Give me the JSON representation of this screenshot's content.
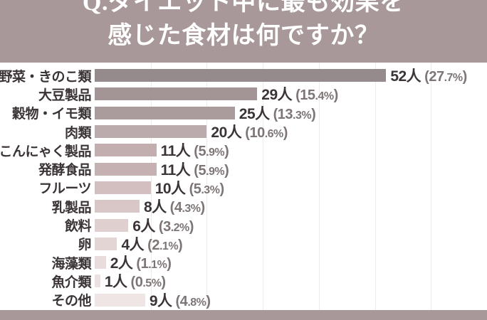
{
  "header": {
    "title_line1": "Q.ダイエット中に最も効果を",
    "title_line2": "感じた食材は何ですか？"
  },
  "chart_data": {
    "type": "bar",
    "orientation": "horizontal",
    "title": "Q.ダイエット中に最も効果を感じた食材は何ですか？",
    "unit_suffix": "人",
    "axis_max": 70,
    "grid_step": 10,
    "grid_on": true,
    "categories": [
      "野菜・きのこ類",
      "大豆製品",
      "穀物・イモ類",
      "肉類",
      "こんにゃく製品",
      "発酵食品",
      "フルーツ",
      "乳製品",
      "飲料",
      "卵",
      "海藻類",
      "魚介類",
      "その他"
    ],
    "values": [
      52,
      29,
      25,
      20,
      11,
      11,
      10,
      8,
      6,
      4,
      2,
      1,
      9
    ],
    "percents": [
      "27.7",
      "15.4",
      "13.3",
      "10.6",
      "5.9",
      "5.9",
      "5.3",
      "4.3",
      "3.2",
      "2.1",
      "1.1",
      "0.5",
      "4.8"
    ],
    "value_labels": [
      "52人 (27.7%)",
      "29人 (15.4%)",
      "25人 (13.3%)",
      "20人 (10.6%)",
      "11人 (5.9%)",
      "11人 (5.9%)",
      "10人 (5.3%)",
      "8人 (4.3%)",
      "6人 (3.2%)",
      "4人 (2.1%)",
      "2人 (1.1%)",
      "1人 (0.5%)",
      "9人 (4.8%)"
    ],
    "bar_colors": [
      "#968b8c",
      "#a39596",
      "#aa9c9d",
      "#bcabac",
      "#c2aeae",
      "#c5b1b1",
      "#d3bfbf",
      "#d9c6c6",
      "#dfcfcf",
      "#e4d5d5",
      "#e9dcdc",
      "#ece1e1",
      "#f0e5e5"
    ],
    "grid_color": "#eeeceb"
  },
  "colors": {
    "header_bg": "#a89899",
    "footer_bg": "#a89899",
    "title_text": "#ffffff",
    "label_text": "#3b3436",
    "count_text": "#3b3436",
    "percent_text": "#7d7576"
  }
}
